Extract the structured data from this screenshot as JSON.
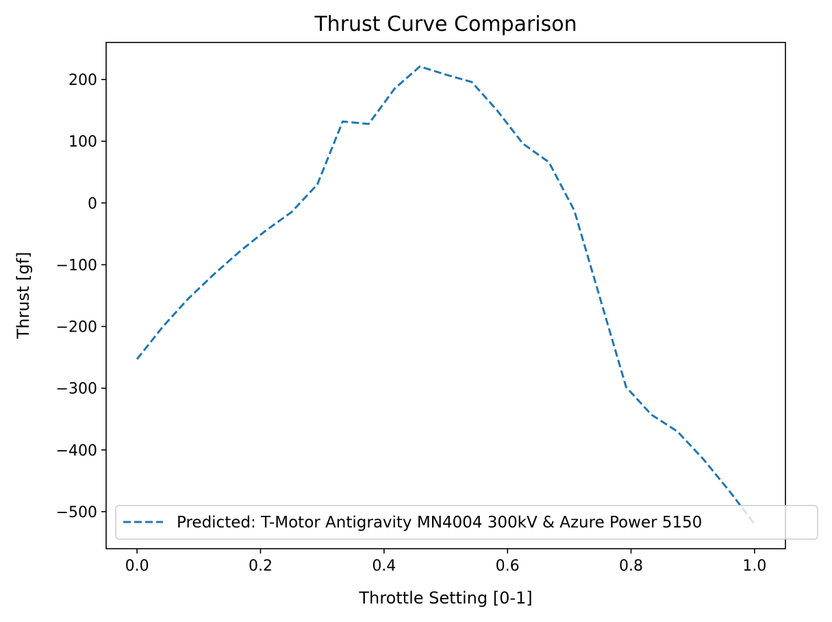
{
  "chart_data": {
    "type": "line",
    "title": "Thrust Curve Comparison",
    "xlabel": "Throttle Setting [0-1]",
    "ylabel": "Thrust [gf]",
    "xlim": [
      -0.05,
      1.05
    ],
    "ylim": [
      -560,
      260
    ],
    "xticks": [
      0.0,
      0.2,
      0.4,
      0.6,
      0.8,
      1.0
    ],
    "xtick_labels": [
      "0.0",
      "0.2",
      "0.4",
      "0.6",
      "0.8",
      "1.0"
    ],
    "yticks": [
      200,
      100,
      0,
      -100,
      -200,
      -300,
      -400,
      -500
    ],
    "ytick_labels": [
      "200",
      "100",
      "0",
      "−100",
      "−200",
      "−300",
      "−400",
      "−500"
    ],
    "grid": false,
    "legend_placement": "lower-left",
    "series": [
      {
        "name": "Predicted: T-Motor Antigravity MN4004 300kV & Azure Power 5150",
        "color": "#1f77b4",
        "style": "dashed",
        "x": [
          0.0,
          0.042,
          0.083,
          0.125,
          0.167,
          0.208,
          0.25,
          0.292,
          0.333,
          0.375,
          0.417,
          0.458,
          0.5,
          0.542,
          0.583,
          0.625,
          0.667,
          0.708,
          0.75,
          0.792,
          0.833,
          0.875,
          0.917,
          0.958,
          1.0
        ],
        "y": [
          -253,
          -200,
          -155,
          -115,
          -78,
          -45,
          -15,
          30,
          132,
          128,
          185,
          221,
          208,
          196,
          150,
          96,
          66,
          -12,
          -155,
          -298,
          -343,
          -370,
          -415,
          -465,
          -520
        ]
      }
    ]
  }
}
